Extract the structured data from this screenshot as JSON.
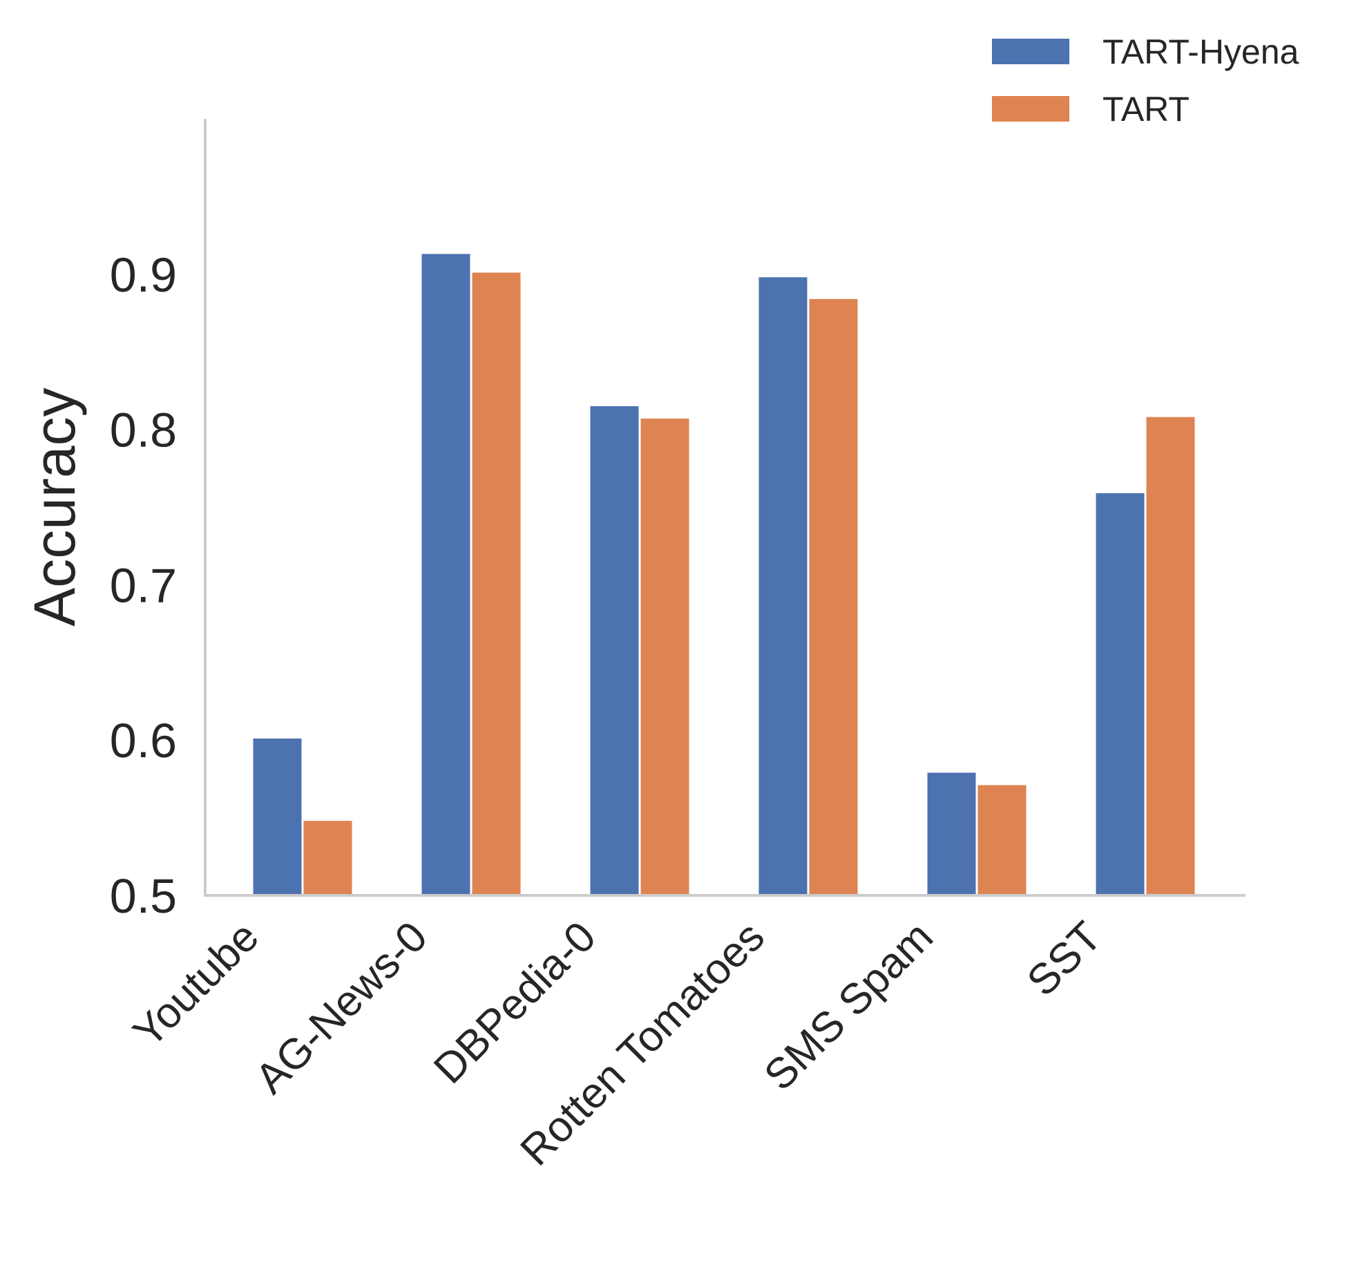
{
  "chart_data": {
    "type": "bar",
    "title": "",
    "xlabel": "",
    "ylabel": "Accuracy",
    "ylim": [
      0.5,
      1.0
    ],
    "yticks": [
      0.5,
      0.6,
      0.7,
      0.8,
      0.9
    ],
    "ytick_labels": [
      "0.5",
      "0.6",
      "0.7",
      "0.8",
      "0.9"
    ],
    "grid": false,
    "legend_position": "top-right",
    "categories": [
      "Youtube",
      "AG-News-0",
      "DBPedia-0",
      "Rotten Tomatoes",
      "SMS Spam",
      "SST"
    ],
    "series": [
      {
        "name": "TART-Hyena",
        "color": "#4c72b0",
        "values": [
          0.601,
          0.913,
          0.815,
          0.898,
          0.579,
          0.759
        ]
      },
      {
        "name": "TART",
        "color": "#dd8452",
        "values": [
          0.548,
          0.901,
          0.807,
          0.884,
          0.571,
          0.808
        ]
      }
    ]
  }
}
